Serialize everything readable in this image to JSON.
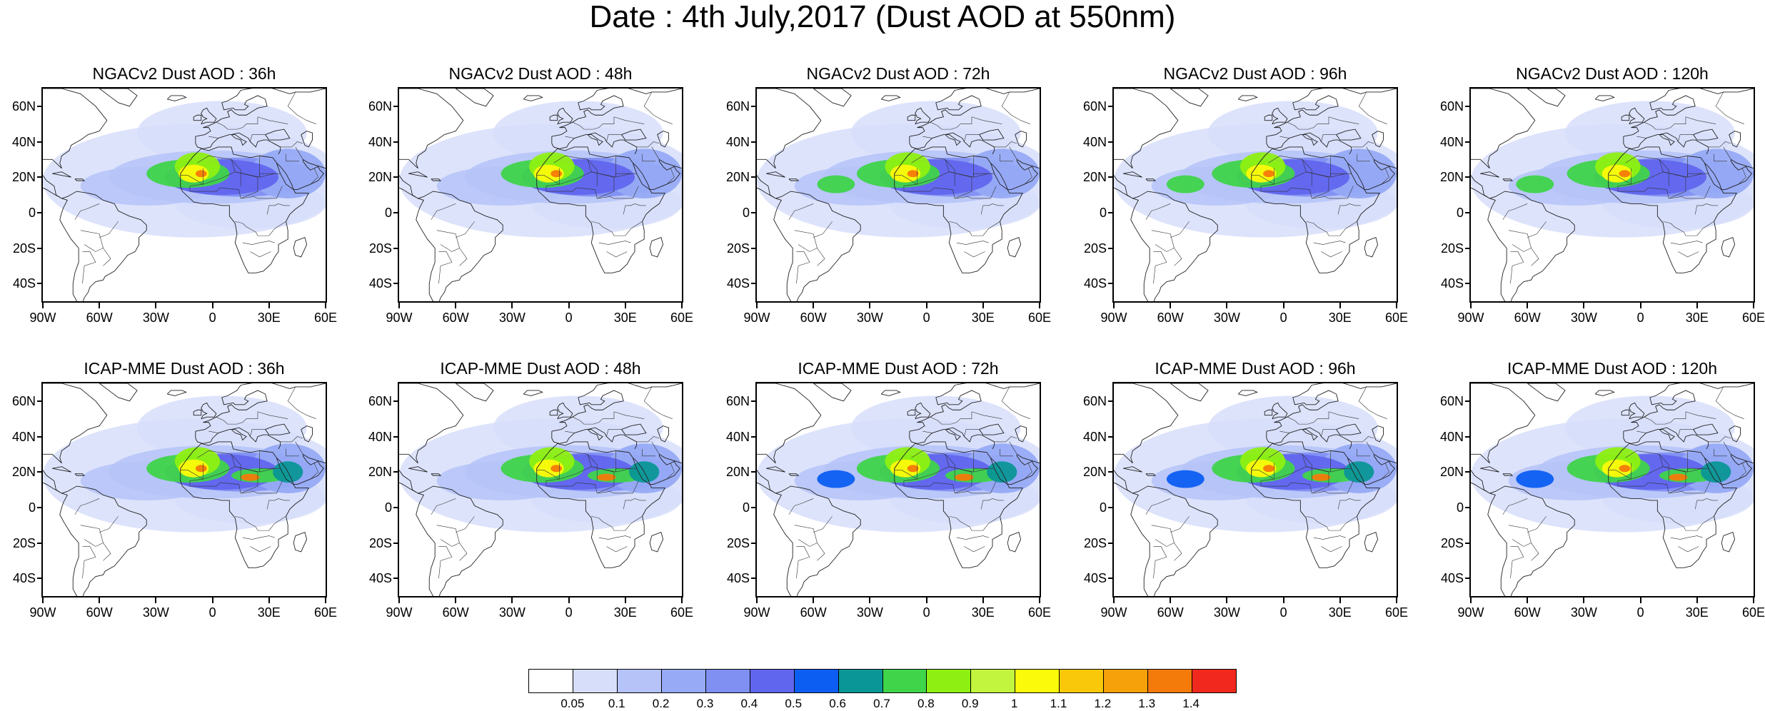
{
  "title": "Date : 4th July,2017 (Dust AOD at 550nm)",
  "lat_labels": [
    "60N",
    "40N",
    "20N",
    "0",
    "20S",
    "40S"
  ],
  "lat_values": [
    60,
    40,
    20,
    0,
    -20,
    -40
  ],
  "lon_labels": [
    "90W",
    "60W",
    "30W",
    "0",
    "30E",
    "60E"
  ],
  "lon_values": [
    -90,
    -60,
    -30,
    0,
    30,
    60
  ],
  "lat_range": [
    -50,
    70
  ],
  "lon_range": [
    -90,
    60
  ],
  "rows": [
    {
      "model": "NGACv2",
      "panels": [
        {
          "title": "NGACv2 Dust AOD : 36h",
          "hour": 36
        },
        {
          "title": "NGACv2 Dust AOD : 48h",
          "hour": 48
        },
        {
          "title": "NGACv2 Dust AOD : 72h",
          "hour": 72
        },
        {
          "title": "NGACv2 Dust AOD : 96h",
          "hour": 96
        },
        {
          "title": "NGACv2 Dust AOD : 120h",
          "hour": 120
        }
      ]
    },
    {
      "model": "ICAP-MME",
      "panels": [
        {
          "title": "ICAP-MME Dust AOD : 36h",
          "hour": 36
        },
        {
          "title": "ICAP-MME Dust AOD : 48h",
          "hour": 48
        },
        {
          "title": "ICAP-MME Dust AOD : 72h",
          "hour": 72
        },
        {
          "title": "ICAP-MME Dust AOD : 96h",
          "hour": 96
        },
        {
          "title": "ICAP-MME Dust AOD : 120h",
          "hour": 120
        }
      ]
    }
  ],
  "colorbar": {
    "levels": [
      "0.05",
      "0.1",
      "0.2",
      "0.3",
      "0.4",
      "0.5",
      "0.6",
      "0.7",
      "0.8",
      "0.9",
      "1",
      "1.1",
      "1.2",
      "1.3",
      "1.4"
    ],
    "colors": [
      "#ffffff",
      "#d7defa",
      "#b5c3f8",
      "#96aaf6",
      "#7f8ff2",
      "#6166ee",
      "#0c5ef2",
      "#0a9696",
      "#3fd44a",
      "#8ef012",
      "#c2f53d",
      "#fafa0a",
      "#fac80a",
      "#f6a00a",
      "#f47a0a",
      "#f0281e"
    ]
  }
}
